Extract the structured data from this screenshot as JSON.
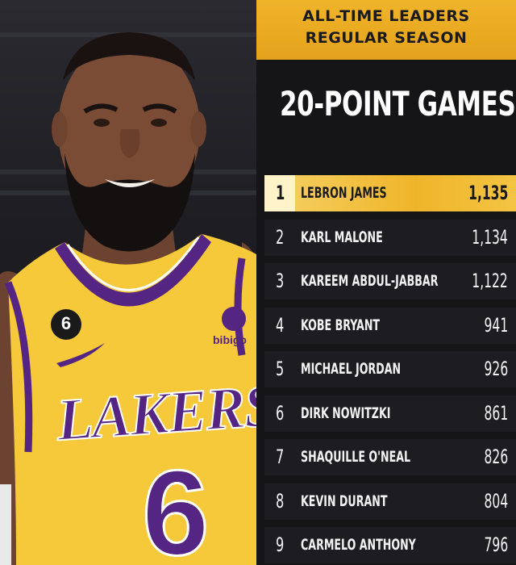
{
  "header": {
    "line1": "ALL-TIME LEADERS",
    "line2": "REGULAR SEASON"
  },
  "stat_title": "20-POINT GAMES",
  "photo": {
    "jersey_wordmark": "LAKERS",
    "jersey_number": "6",
    "patch_number": "6",
    "sponsor": "bibigo"
  },
  "leaders": [
    {
      "rank": "1",
      "name": "LEBRON JAMES",
      "value": "1,135"
    },
    {
      "rank": "2",
      "name": "KARL MALONE",
      "value": "1,134"
    },
    {
      "rank": "3",
      "name": "KAREEM ABDUL-JABBAR",
      "value": "1,122"
    },
    {
      "rank": "4",
      "name": "KOBE BRYANT",
      "value": "941"
    },
    {
      "rank": "5",
      "name": "MICHAEL JORDAN",
      "value": "926"
    },
    {
      "rank": "6",
      "name": "DIRK NOWITZKI",
      "value": "861"
    },
    {
      "rank": "7",
      "name": "SHAQUILLE O'NEAL",
      "value": "826"
    },
    {
      "rank": "8",
      "name": "KEVIN DURANT",
      "value": "804"
    },
    {
      "rank": "9",
      "name": "CARMELO ANTHONY",
      "value": "796"
    }
  ],
  "colors": {
    "gold": "#f0b429",
    "lakers_purple": "#552583",
    "lakers_gold": "#fdb927",
    "panel_dark": "#151518"
  }
}
